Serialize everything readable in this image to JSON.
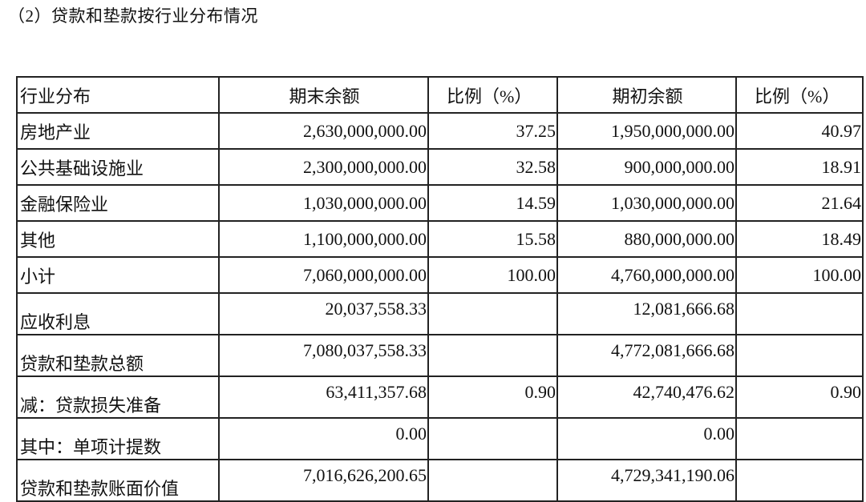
{
  "title": "（2）贷款和垫款按行业分布情况",
  "table": {
    "headers": [
      "行业分布",
      "期末余额",
      "比例（%）",
      "期初余额",
      "比例（%）"
    ],
    "rows": [
      [
        "房地产业",
        "2,630,000,000.00",
        "37.25",
        "1,950,000,000.00",
        "40.97"
      ],
      [
        "公共基础设施业",
        "2,300,000,000.00",
        "32.58",
        "900,000,000.00",
        "18.91"
      ],
      [
        "金融保险业",
        "1,030,000,000.00",
        "14.59",
        "1,030,000,000.00",
        "21.64"
      ],
      [
        "其他",
        "1,100,000,000.00",
        "15.58",
        "880,000,000.00",
        "18.49"
      ],
      [
        "小计",
        "7,060,000,000.00",
        "100.00",
        "4,760,000,000.00",
        "100.00"
      ],
      [
        "应收利息",
        "20,037,558.33",
        "",
        "12,081,666.68",
        ""
      ],
      [
        "贷款和垫款总额",
        "7,080,037,558.33",
        "",
        "4,772,081,666.68",
        ""
      ],
      [
        "减：贷款损失准备",
        "63,411,357.68",
        "0.90",
        "42,740,476.62",
        "0.90"
      ],
      [
        "其中：单项计提数",
        "0.00",
        "",
        "0.00",
        ""
      ],
      [
        "贷款和垫款账面价值",
        "7,016,626,200.65",
        "",
        "4,729,341,190.06",
        ""
      ]
    ]
  }
}
